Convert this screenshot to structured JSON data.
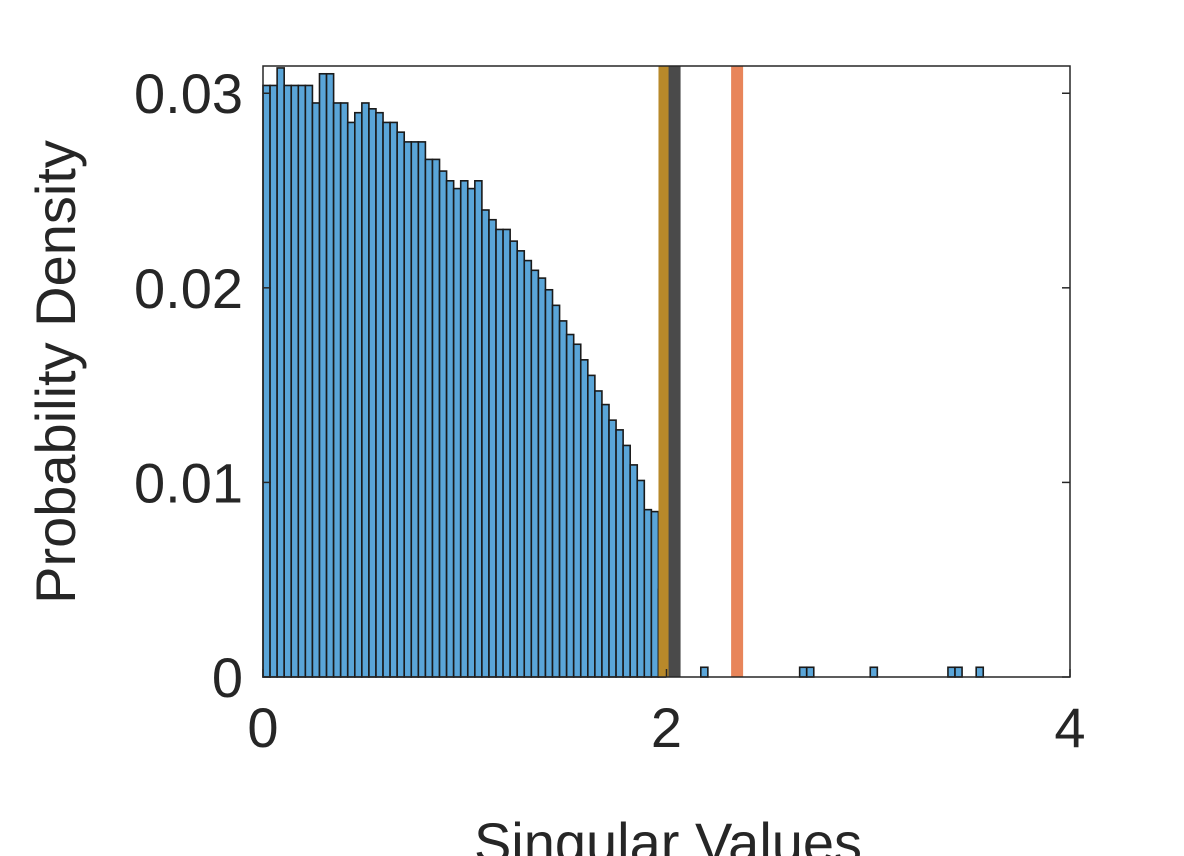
{
  "chart_data": {
    "type": "histogram",
    "xlabel": "Singular Values",
    "ylabel": "Probability Density",
    "bins": [
      0,
      0.035,
      0.07,
      0.105,
      0.14,
      0.175,
      0.21,
      0.245,
      0.28,
      0.315,
      0.35,
      0.385,
      0.42,
      0.455,
      0.49,
      0.525,
      0.56,
      0.595,
      0.63,
      0.665,
      0.7,
      0.735,
      0.77,
      0.805,
      0.84,
      0.875,
      0.91,
      0.945,
      0.98,
      1.015,
      1.05,
      1.085,
      1.12,
      1.155,
      1.19,
      1.225,
      1.26,
      1.295,
      1.33,
      1.365,
      1.4,
      1.435,
      1.47,
      1.505,
      1.54,
      1.575,
      1.61,
      1.645,
      1.68,
      1.715,
      1.75,
      1.785,
      1.82,
      1.855,
      1.89,
      1.925,
      1.96,
      1.995,
      2.03,
      2.065,
      2.1,
      2.135,
      2.17,
      2.205,
      2.24,
      2.275,
      2.31,
      2.345,
      2.38,
      2.415,
      2.45,
      2.485,
      2.52,
      2.555,
      2.59,
      2.625,
      2.66,
      2.695,
      2.73,
      2.765,
      2.8,
      2.835,
      2.87,
      2.905,
      2.94,
      2.975,
      3.01,
      3.045,
      3.08,
      3.115,
      3.15,
      3.185,
      3.22,
      3.255,
      3.29,
      3.325,
      3.36,
      3.395,
      3.43,
      3.465,
      3.5,
      3.535,
      3.57
    ],
    "values": [
      0.0304,
      0.0304,
      0.0313,
      0.0304,
      0.0304,
      0.0304,
      0.0304,
      0.0295,
      0.031,
      0.031,
      0.0295,
      0.0295,
      0.0285,
      0.029,
      0.0295,
      0.0292,
      0.029,
      0.0285,
      0.0285,
      0.028,
      0.0275,
      0.0275,
      0.0275,
      0.0266,
      0.0266,
      0.026,
      0.0255,
      0.0251,
      0.0255,
      0.0251,
      0.0255,
      0.024,
      0.0235,
      0.023,
      0.023,
      0.0224,
      0.0219,
      0.0214,
      0.0209,
      0.0205,
      0.0199,
      0.0191,
      0.0183,
      0.0176,
      0.0171,
      0.0163,
      0.0155,
      0.0147,
      0.014,
      0.0132,
      0.0127,
      0.0119,
      0.0109,
      0.0101,
      0.0086,
      0.0085,
      0.0045,
      0,
      0,
      0,
      0,
      0,
      0.0005,
      0,
      0,
      0,
      0,
      0,
      0,
      0,
      0,
      0,
      0,
      0,
      0,
      0,
      0.0005,
      0.0005,
      0,
      0,
      0,
      0,
      0,
      0,
      0,
      0,
      0.0005,
      0,
      0,
      0,
      0,
      0,
      0,
      0,
      0,
      0,
      0,
      0.0005,
      0.0005,
      0,
      0,
      0.0005
    ],
    "color": "#5aa5d8",
    "vlines": [
      {
        "x": 1.99,
        "color": "#b8892a"
      },
      {
        "x": 2.04,
        "color": "#4a4a4a"
      },
      {
        "x": 2.35,
        "color": "#e8855a"
      }
    ],
    "xlim": [
      0,
      4
    ],
    "xticks": [
      0,
      2,
      4
    ],
    "ylim": [
      0,
      0.0314
    ],
    "yticks": [
      0,
      0.01,
      0.02,
      0.03
    ]
  }
}
